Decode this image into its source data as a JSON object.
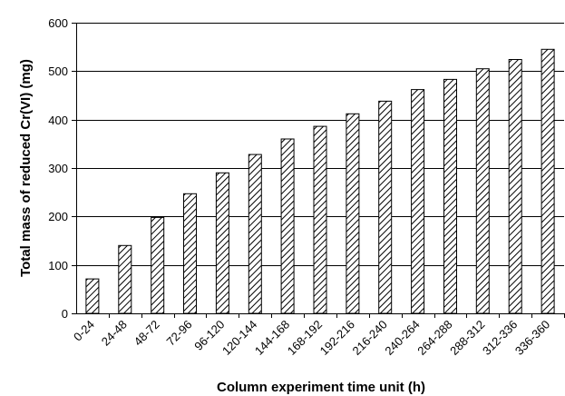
{
  "chart_data": {
    "type": "bar",
    "title": "",
    "xlabel": "Column experiment time unit (h)",
    "ylabel": "Total mass of reduced Cr(VI) (mg)",
    "categories": [
      "0-24",
      "24-48",
      "48-72",
      "72-96",
      "96-120",
      "120-144",
      "144-168",
      "168-192",
      "192-216",
      "216-240",
      "240-264",
      "264-288",
      "288-312",
      "312-336",
      "336-360"
    ],
    "values": [
      71,
      140,
      198,
      247,
      290,
      328,
      360,
      386,
      412,
      438,
      462,
      483,
      505,
      524,
      545
    ],
    "ylim": [
      0,
      600
    ],
    "yticks": [
      0,
      100,
      200,
      300,
      400,
      500,
      600
    ],
    "grid": true,
    "legend": "none",
    "bar_fill": "diagonal-hatch",
    "colors": {
      "bar_stroke": "#000000",
      "hatch": "#000000",
      "background": "#ffffff"
    }
  }
}
